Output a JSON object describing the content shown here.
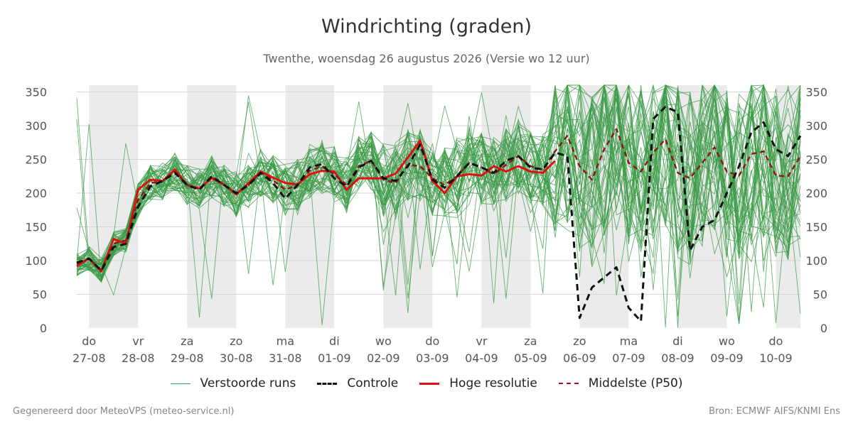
{
  "header": {
    "title": "Windrichting (graden)",
    "subtitle": "Twenthe, woensdag 26 augustus 2026 (Versie wo 12 uur)"
  },
  "footer": {
    "left": "Gegenereerd door MeteoVPS (meteo-service.nl)",
    "right": "Bron: ECMWF AIFS/KNMI Ens"
  },
  "legend": [
    {
      "label": "Verstoorde runs",
      "color": "#3a9a46",
      "style": "thin"
    },
    {
      "label": "Controle",
      "color": "#111111",
      "style": "dashed"
    },
    {
      "label": "Hoge resolutie",
      "color": "#dd1111",
      "style": "solid"
    },
    {
      "label": "Middelste (P50)",
      "color": "#8b1a1a",
      "style": "dashed"
    }
  ],
  "chart_data": {
    "type": "line",
    "title": "Windrichting (graden)",
    "ylim": [
      0,
      360
    ],
    "yticks": [
      0,
      50,
      100,
      150,
      200,
      250,
      300,
      350
    ],
    "x_range_days": [
      -0.25,
      14.5
    ],
    "grid": "horizontal",
    "legend_position": "bottom",
    "day_ticks": [
      {
        "day": "do",
        "date": "27-08"
      },
      {
        "day": "vr",
        "date": "28-08"
      },
      {
        "day": "za",
        "date": "29-08"
      },
      {
        "day": "zo",
        "date": "30-08"
      },
      {
        "day": "ma",
        "date": "31-08"
      },
      {
        "day": "di",
        "date": "01-09"
      },
      {
        "day": "wo",
        "date": "02-09"
      },
      {
        "day": "do",
        "date": "03-09"
      },
      {
        "day": "vr",
        "date": "04-09"
      },
      {
        "day": "za",
        "date": "05-09"
      },
      {
        "day": "zo",
        "date": "06-09"
      },
      {
        "day": "ma",
        "date": "07-09"
      },
      {
        "day": "di",
        "date": "08-09"
      },
      {
        "day": "wo",
        "date": "09-09"
      },
      {
        "day": "do",
        "date": "10-09"
      }
    ],
    "shaded_days": [
      0,
      2,
      4,
      6,
      8,
      10,
      12,
      14
    ],
    "ensemble": {
      "name": "Verstoorde runs",
      "members": 50,
      "color": "#3a9a46",
      "t_step_days": 0.25,
      "t_start_days": -0.25
    },
    "series": [
      {
        "name": "Hoge resolutie",
        "color": "#dd1111",
        "t_start_days": -0.25,
        "t_step_days": 0.25,
        "values": [
          92,
          103,
          84,
          132,
          125,
          205,
          220,
          218,
          235,
          212,
          207,
          222,
          213,
          198,
          215,
          232,
          223,
          215,
          213,
          228,
          233,
          232,
          205,
          222,
          222,
          222,
          229,
          253,
          278,
          218,
          200,
          225,
          228,
          226,
          240,
          232,
          240,
          232,
          230,
          248
        ]
      },
      {
        "name": "Controle",
        "color": "#111111",
        "t_start_days": -0.25,
        "t_step_days": 0.25,
        "values": [
          97,
          103,
          85,
          120,
          125,
          180,
          210,
          218,
          230,
          212,
          205,
          225,
          212,
          200,
          212,
          230,
          215,
          192,
          212,
          238,
          243,
          222,
          210,
          238,
          248,
          222,
          218,
          240,
          272,
          220,
          208,
          225,
          245,
          238,
          230,
          248,
          255,
          238,
          235,
          260,
          255,
          15,
          60,
          75,
          90,
          30,
          10,
          310,
          328,
          320,
          115,
          150,
          160,
          200,
          240,
          290,
          305,
          265,
          255,
          285
        ]
      },
      {
        "name": "Middelste (P50)",
        "color": "#8b1a1a",
        "t_start_days": -0.25,
        "t_step_days": 0.25,
        "values": [
          95,
          103,
          86,
          125,
          130,
          190,
          215,
          218,
          232,
          212,
          206,
          224,
          212,
          199,
          212,
          231,
          219,
          205,
          212,
          233,
          240,
          228,
          212,
          240,
          248,
          220,
          215,
          242,
          240,
          222,
          212,
          225,
          245,
          238,
          228,
          242,
          255,
          240,
          235,
          262,
          285,
          240,
          220,
          265,
          295,
          245,
          232,
          260,
          280,
          230,
          222,
          245,
          268,
          232,
          226,
          258,
          262,
          226,
          225,
          255
        ]
      }
    ]
  }
}
